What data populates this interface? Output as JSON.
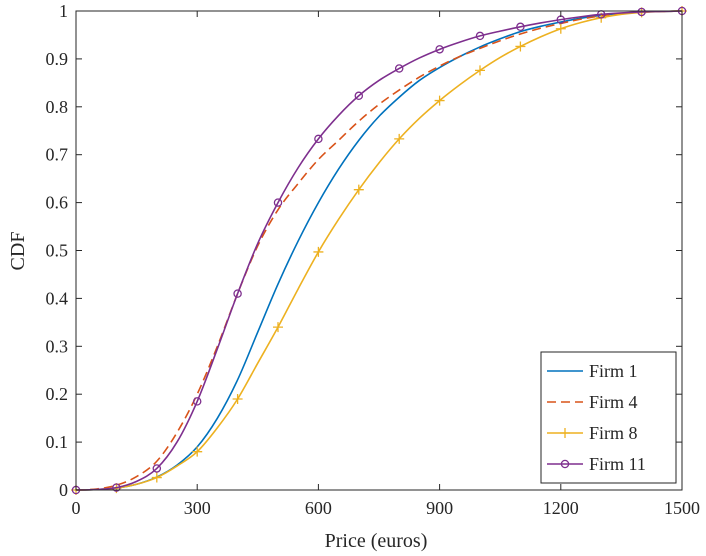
{
  "chart_data": {
    "type": "line",
    "title": "",
    "xlabel": "Price (euros)",
    "ylabel": "CDF",
    "xlim": [
      0,
      1500
    ],
    "ylim": [
      0,
      1
    ],
    "xticks": [
      0,
      300,
      600,
      900,
      1200,
      1500
    ],
    "yticks": [
      0,
      0.1,
      0.2,
      0.3,
      0.4,
      0.5,
      0.6,
      0.7,
      0.8,
      0.9,
      1
    ],
    "xtick_labels": [
      "0",
      "300",
      "600",
      "900",
      "1200",
      "1500"
    ],
    "ytick_labels": [
      "0",
      "0.1",
      "0.2",
      "0.3",
      "0.4",
      "0.5",
      "0.6",
      "0.7",
      "0.8",
      "0.9",
      "1"
    ],
    "grid": false,
    "legend_position": "bottom-right",
    "series": [
      {
        "name": "Firm 1",
        "color": "#0072bd",
        "line_style": "solid",
        "marker": "none",
        "x": [
          0,
          50,
          100,
          150,
          200,
          250,
          300,
          350,
          400,
          450,
          500,
          550,
          600,
          650,
          700,
          750,
          800,
          850,
          900,
          950,
          1000,
          1050,
          1100,
          1150,
          1200,
          1250,
          1300,
          1350,
          1400,
          1450,
          1500
        ],
        "y": [
          0,
          0.001,
          0.004,
          0.012,
          0.027,
          0.052,
          0.09,
          0.15,
          0.23,
          0.33,
          0.43,
          0.52,
          0.6,
          0.67,
          0.73,
          0.78,
          0.82,
          0.855,
          0.882,
          0.905,
          0.925,
          0.942,
          0.957,
          0.968,
          0.977,
          0.985,
          0.991,
          0.995,
          0.998,
          0.999,
          1.0
        ]
      },
      {
        "name": "Firm 4",
        "color": "#d95319",
        "line_style": "dashed",
        "marker": "none",
        "x": [
          0,
          50,
          100,
          150,
          200,
          250,
          300,
          350,
          400,
          450,
          500,
          550,
          600,
          650,
          700,
          750,
          800,
          850,
          900,
          950,
          1000,
          1050,
          1100,
          1150,
          1200,
          1250,
          1300,
          1350,
          1400,
          1450,
          1500
        ],
        "y": [
          0,
          0.002,
          0.01,
          0.028,
          0.06,
          0.12,
          0.2,
          0.3,
          0.41,
          0.51,
          0.585,
          0.64,
          0.69,
          0.73,
          0.77,
          0.805,
          0.835,
          0.862,
          0.885,
          0.905,
          0.922,
          0.938,
          0.952,
          0.964,
          0.974,
          0.983,
          0.99,
          0.995,
          0.998,
          0.999,
          1.0
        ]
      },
      {
        "name": "Firm 8",
        "color": "#edb120",
        "line_style": "solid",
        "marker": "+",
        "x": [
          0,
          50,
          100,
          150,
          200,
          250,
          300,
          350,
          400,
          450,
          500,
          550,
          600,
          650,
          700,
          750,
          800,
          850,
          900,
          950,
          1000,
          1050,
          1100,
          1150,
          1200,
          1250,
          1300,
          1350,
          1400,
          1450,
          1500
        ],
        "y": [
          0,
          0.001,
          0.004,
          0.012,
          0.026,
          0.05,
          0.08,
          0.13,
          0.19,
          0.265,
          0.34,
          0.42,
          0.497,
          0.565,
          0.627,
          0.683,
          0.733,
          0.776,
          0.813,
          0.846,
          0.876,
          0.903,
          0.926,
          0.946,
          0.963,
          0.976,
          0.986,
          0.993,
          0.997,
          0.999,
          1.0
        ],
        "marker_x": [
          0,
          100,
          200,
          300,
          400,
          500,
          600,
          700,
          800,
          900,
          1000,
          1100,
          1200,
          1300,
          1400,
          1500
        ]
      },
      {
        "name": "Firm 11",
        "color": "#7e2f8e",
        "line_style": "solid",
        "marker": "o",
        "x": [
          0,
          50,
          100,
          150,
          200,
          250,
          300,
          350,
          400,
          450,
          500,
          550,
          600,
          650,
          700,
          750,
          800,
          850,
          900,
          950,
          1000,
          1050,
          1100,
          1150,
          1200,
          1250,
          1300,
          1350,
          1400,
          1450,
          1500
        ],
        "y": [
          0,
          0.001,
          0.005,
          0.018,
          0.045,
          0.1,
          0.185,
          0.295,
          0.41,
          0.515,
          0.6,
          0.673,
          0.733,
          0.782,
          0.823,
          0.855,
          0.88,
          0.902,
          0.92,
          0.935,
          0.948,
          0.958,
          0.967,
          0.975,
          0.982,
          0.988,
          0.993,
          0.996,
          0.998,
          0.999,
          1.0
        ],
        "marker_x": [
          0,
          100,
          200,
          300,
          400,
          500,
          600,
          700,
          800,
          900,
          1000,
          1100,
          1200,
          1300,
          1400,
          1500
        ]
      }
    ]
  }
}
